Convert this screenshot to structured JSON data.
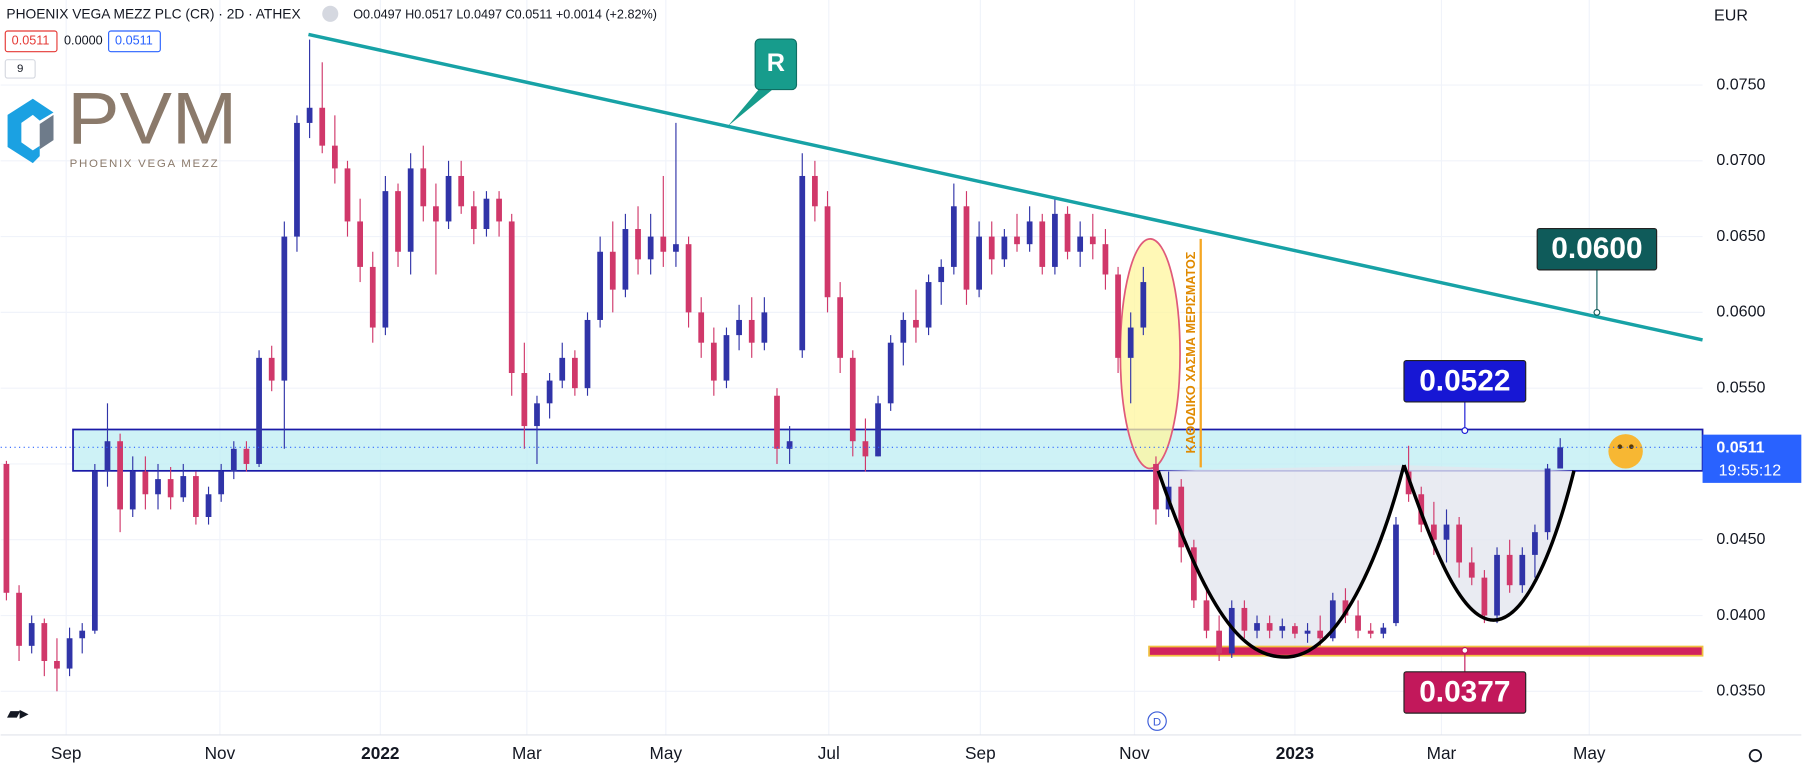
{
  "header": {
    "symbol": "PHOENIX VEGA MEZZ PLC (CR) · 2D · ATHEX",
    "ohlc": "O0.0497 H0.0517 L0.0497 C0.0511 +0.0014 (+2.82%)",
    "bid": "0.0511",
    "spread": "0.0000",
    "ask": "0.0511",
    "indicators": "9"
  },
  "logo": {
    "mark": "PVM",
    "name": "PHOENIX VEGA MEZZ"
  },
  "chart_data": {
    "type": "candlestick",
    "axis_label": "EUR",
    "open": [
      0.05,
      0.0415,
      0.038,
      0.0395,
      0.037,
      0.0365,
      0.0385,
      0.039,
      0.0495,
      0.0515,
      0.047,
      0.0495,
      0.048,
      0.049,
      0.0478,
      0.0492,
      0.0465,
      0.048,
      0.0495,
      0.051,
      0.05,
      0.057,
      0.0555,
      0.065,
      0.0725,
      0.0735,
      0.071,
      0.0695,
      0.066,
      0.063,
      0.059,
      0.068,
      0.064,
      0.0695,
      0.067,
      0.066,
      0.069,
      0.067,
      0.0655,
      0.0675,
      0.066,
      0.056,
      0.0525,
      0.054,
      0.0555,
      0.057,
      0.055,
      0.0595,
      0.064,
      0.0615,
      0.0655,
      0.0635,
      0.065,
      0.064,
      0.0645,
      0.06,
      0.058,
      0.0555,
      0.0585,
      0.0595,
      0.058,
      0.0545,
      0.051,
      0.0575,
      0.069,
      0.067,
      0.061,
      0.057,
      0.0515,
      0.0505,
      0.054,
      0.058,
      0.0595,
      0.059,
      0.062,
      0.063,
      0.067,
      0.0615,
      0.065,
      0.0635,
      0.065,
      0.0645,
      0.066,
      0.063,
      0.0665,
      0.064,
      0.065,
      0.0645,
      0.0625,
      0.057,
      0.059,
      0.05,
      0.047,
      0.0485,
      0.0445,
      0.041,
      0.039,
      0.0375,
      0.0405,
      0.039,
      0.0395,
      0.039,
      0.0393,
      0.0388,
      0.039,
      0.0385,
      0.041,
      0.04,
      0.039,
      0.0388,
      0.0395,
      0.0495,
      0.048,
      0.046,
      0.045,
      0.046,
      0.0435,
      0.0425,
      0.04,
      0.044,
      0.042,
      0.044,
      0.0455,
      0.0497
    ],
    "high": [
      0.0502,
      0.042,
      0.04,
      0.0398,
      0.0385,
      0.0392,
      0.0395,
      0.05,
      0.054,
      0.052,
      0.0505,
      0.0505,
      0.05,
      0.0498,
      0.05,
      0.0495,
      0.0485,
      0.05,
      0.0515,
      0.0515,
      0.0575,
      0.0578,
      0.066,
      0.073,
      0.078,
      0.0765,
      0.073,
      0.07,
      0.0675,
      0.064,
      0.069,
      0.0685,
      0.0705,
      0.071,
      0.0685,
      0.07,
      0.07,
      0.068,
      0.068,
      0.068,
      0.0665,
      0.058,
      0.0545,
      0.056,
      0.058,
      0.0575,
      0.06,
      0.065,
      0.066,
      0.0665,
      0.067,
      0.0665,
      0.069,
      0.0725,
      0.065,
      0.061,
      0.059,
      0.059,
      0.0605,
      0.061,
      0.061,
      0.055,
      0.0525,
      0.0705,
      0.07,
      0.068,
      0.062,
      0.0575,
      0.053,
      0.0545,
      0.0585,
      0.06,
      0.0615,
      0.0625,
      0.0635,
      0.0685,
      0.068,
      0.066,
      0.066,
      0.0655,
      0.0665,
      0.067,
      0.0665,
      0.0675,
      0.067,
      0.066,
      0.0665,
      0.0655,
      0.063,
      0.06,
      0.063,
      0.0505,
      0.0495,
      0.049,
      0.045,
      0.042,
      0.04,
      0.041,
      0.041,
      0.04,
      0.04,
      0.0398,
      0.0395,
      0.0395,
      0.04,
      0.0415,
      0.0418,
      0.041,
      0.0395,
      0.0395,
      0.0465,
      0.0512,
      0.0485,
      0.0475,
      0.047,
      0.0465,
      0.0445,
      0.043,
      0.0445,
      0.045,
      0.0445,
      0.046,
      0.05,
      0.0517
    ],
    "low": [
      0.041,
      0.037,
      0.0375,
      0.036,
      0.035,
      0.036,
      0.0375,
      0.0388,
      0.0485,
      0.0455,
      0.0465,
      0.047,
      0.047,
      0.047,
      0.0475,
      0.046,
      0.046,
      0.0475,
      0.049,
      0.0495,
      0.0498,
      0.0548,
      0.051,
      0.064,
      0.0715,
      0.0705,
      0.0685,
      0.065,
      0.062,
      0.058,
      0.0585,
      0.063,
      0.0625,
      0.066,
      0.0625,
      0.0655,
      0.0665,
      0.0645,
      0.065,
      0.065,
      0.0545,
      0.051,
      0.05,
      0.053,
      0.055,
      0.0545,
      0.0545,
      0.059,
      0.06,
      0.061,
      0.0625,
      0.0625,
      0.063,
      0.063,
      0.059,
      0.057,
      0.0545,
      0.055,
      0.0575,
      0.057,
      0.0575,
      0.05,
      0.05,
      0.057,
      0.066,
      0.06,
      0.056,
      0.0505,
      0.0495,
      0.0505,
      0.0535,
      0.0565,
      0.058,
      0.0585,
      0.0605,
      0.0625,
      0.0605,
      0.061,
      0.0625,
      0.063,
      0.064,
      0.064,
      0.0625,
      0.0625,
      0.0635,
      0.063,
      0.0635,
      0.0615,
      0.056,
      0.054,
      0.0585,
      0.046,
      0.0465,
      0.0435,
      0.0405,
      0.0385,
      0.037,
      0.0372,
      0.0385,
      0.0385,
      0.0385,
      0.0385,
      0.0385,
      0.0382,
      0.038,
      0.0383,
      0.0395,
      0.0385,
      0.0385,
      0.0385,
      0.0393,
      0.0475,
      0.0455,
      0.044,
      0.0435,
      0.0425,
      0.042,
      0.0395,
      0.0395,
      0.0415,
      0.0415,
      0.0425,
      0.045,
      0.0497
    ],
    "close": [
      0.0415,
      0.038,
      0.0395,
      0.037,
      0.0365,
      0.0385,
      0.039,
      0.0495,
      0.0515,
      0.047,
      0.0495,
      0.048,
      0.049,
      0.0478,
      0.0492,
      0.0465,
      0.048,
      0.0495,
      0.051,
      0.05,
      0.057,
      0.0555,
      0.065,
      0.0725,
      0.0735,
      0.071,
      0.0695,
      0.066,
      0.063,
      0.059,
      0.068,
      0.064,
      0.0695,
      0.067,
      0.066,
      0.069,
      0.067,
      0.0655,
      0.0675,
      0.066,
      0.056,
      0.0525,
      0.054,
      0.0555,
      0.057,
      0.055,
      0.0595,
      0.064,
      0.0615,
      0.0655,
      0.0635,
      0.065,
      0.064,
      0.0645,
      0.06,
      0.058,
      0.0555,
      0.0585,
      0.0595,
      0.058,
      0.06,
      0.051,
      0.0515,
      0.069,
      0.067,
      0.061,
      0.057,
      0.0515,
      0.0505,
      0.054,
      0.058,
      0.0595,
      0.059,
      0.062,
      0.063,
      0.067,
      0.0615,
      0.065,
      0.0635,
      0.065,
      0.0645,
      0.066,
      0.063,
      0.0665,
      0.064,
      0.065,
      0.0645,
      0.0625,
      0.057,
      0.059,
      0.062,
      0.047,
      0.0485,
      0.0445,
      0.041,
      0.039,
      0.0375,
      0.0405,
      0.039,
      0.0395,
      0.039,
      0.0393,
      0.0388,
      0.039,
      0.0385,
      0.041,
      0.04,
      0.039,
      0.0388,
      0.0392,
      0.046,
      0.048,
      0.046,
      0.045,
      0.046,
      0.0435,
      0.0425,
      0.04,
      0.044,
      0.042,
      0.044,
      0.0455,
      0.0497,
      0.0511
    ],
    "up_color": "#3034a8",
    "down_color": "#d0386a",
    "xlim": [
      -0.4545,
      134.27
    ],
    "xticks": [
      {
        "value": 4.73,
        "label": "Sep"
      },
      {
        "value": 16.9,
        "label": "Nov"
      },
      {
        "value": 29.6,
        "label": "2022"
      },
      {
        "value": 41.2,
        "label": "Mar"
      },
      {
        "value": 52.2,
        "label": "May"
      },
      {
        "value": 65.1,
        "label": "Jul"
      },
      {
        "value": 77.1,
        "label": "Sep"
      },
      {
        "value": 89.3,
        "label": "Nov"
      },
      {
        "value": 102,
        "label": "2023"
      },
      {
        "value": 113.6,
        "label": "Mar"
      },
      {
        "value": 125.3,
        "label": "May"
      }
    ],
    "ylim": [
      0.03212,
      0.08061
    ],
    "yticks": [
      {
        "value": 0.035,
        "label": "0.0350"
      },
      {
        "value": 0.04,
        "label": "0.0400"
      },
      {
        "value": 0.045,
        "label": "0.0450"
      },
      {
        "value": 0.05,
        "label": "0.0500"
      },
      {
        "value": 0.055,
        "label": "0.0550"
      },
      {
        "value": 0.06,
        "label": "0.0600"
      },
      {
        "value": 0.065,
        "label": "0.0650"
      },
      {
        "value": 0.07,
        "label": "0.0700"
      },
      {
        "value": 0.075,
        "label": "0.0750"
      }
    ],
    "grid": true,
    "last_price": {
      "value": 0.0511,
      "countdown": "19:55:12"
    },
    "price_labels": [
      {
        "value": 0.06,
        "label": "0.0600",
        "color": "#0f5b5a"
      },
      {
        "value": 0.0522,
        "color": "#1717d4"
      },
      {
        "value": 0.0377,
        "color": "#c2185b"
      }
    ],
    "annotations": {
      "resistance": "R",
      "gap": "ΚΑΘΟΔΙΚΟ ΧΑΣΜΑ ΜΕΡΙΣΜΑΤΟΣ",
      "dividend": "D"
    }
  }
}
